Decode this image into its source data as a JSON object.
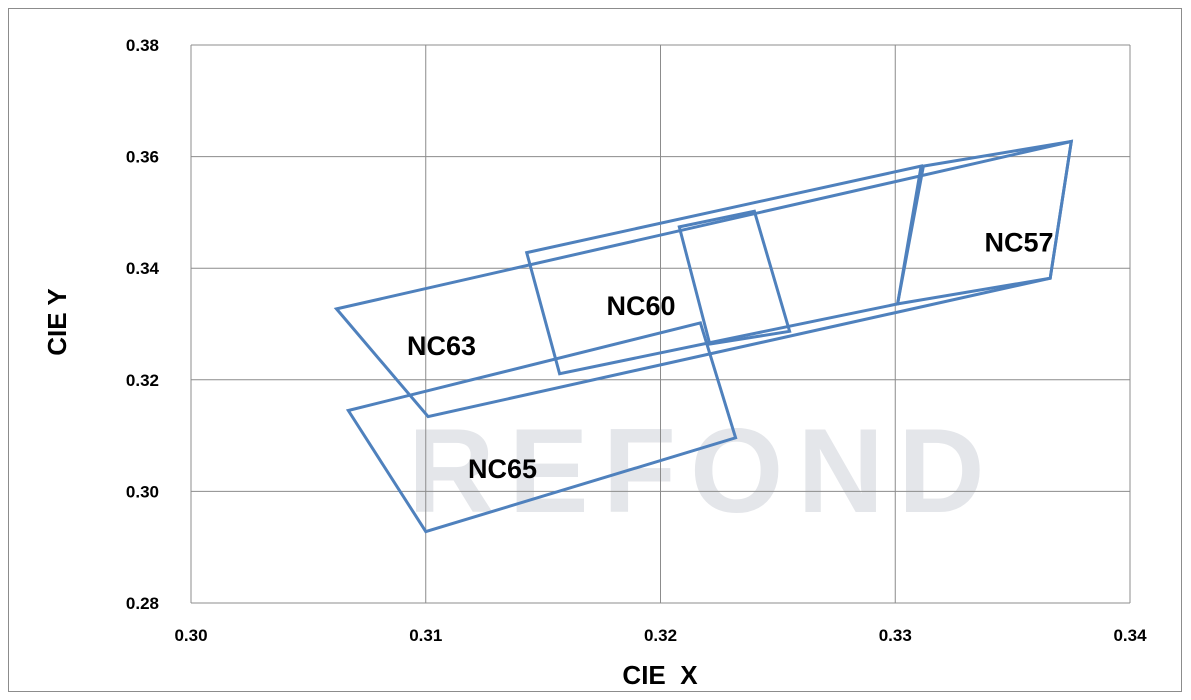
{
  "chart_data": {
    "type": "scatter",
    "title": "",
    "xlabel": "CIE  X",
    "ylabel": "CIE Y",
    "xlim": [
      0.3,
      0.34
    ],
    "ylim": [
      0.28,
      0.38
    ],
    "grid": true,
    "x_ticks": [
      "0.30",
      "0.31",
      "0.32",
      "0.33",
      "0.34"
    ],
    "y_ticks": [
      "0.28",
      "0.30",
      "0.32",
      "0.34",
      "0.36",
      "0.38"
    ],
    "line_color": "#4f81bd",
    "watermark": "REFOND",
    "regions": [
      {
        "label": "NC57",
        "points": [
          [
            0.3312,
            0.3583
          ],
          [
            0.3375,
            0.3627
          ],
          [
            0.3366,
            0.3382
          ],
          [
            0.3301,
            0.3336
          ]
        ],
        "label_pos": [
          0.3338,
          0.343
        ]
      },
      {
        "label": "NC60",
        "points": [
          [
            0.3143,
            0.3428
          ],
          [
            0.3311,
            0.3583
          ],
          [
            0.3301,
            0.3336
          ],
          [
            0.3157,
            0.3211
          ]
        ],
        "label_pos": [
          0.3177,
          0.3316
        ]
      },
      {
        "label": "NC60",
        "points": [
          [
            0.3208,
            0.3474
          ],
          [
            0.324,
            0.3502
          ],
          [
            0.3255,
            0.3287
          ],
          [
            0.3221,
            0.3264
          ]
        ],
        "label_pos": null
      },
      {
        "label": "NC63",
        "points": [
          [
            0.3062,
            0.3327
          ],
          [
            0.3375,
            0.3627
          ],
          [
            0.3366,
            0.3382
          ],
          [
            0.3101,
            0.3134
          ]
        ],
        "label_pos": [
          0.3092,
          0.3244
        ]
      },
      {
        "label": "NC65",
        "points": [
          [
            0.3067,
            0.3145
          ],
          [
            0.3217,
            0.3302
          ],
          [
            0.3232,
            0.3096
          ],
          [
            0.31,
            0.2928
          ]
        ],
        "label_pos": [
          0.3118,
          0.3024
        ]
      }
    ]
  }
}
